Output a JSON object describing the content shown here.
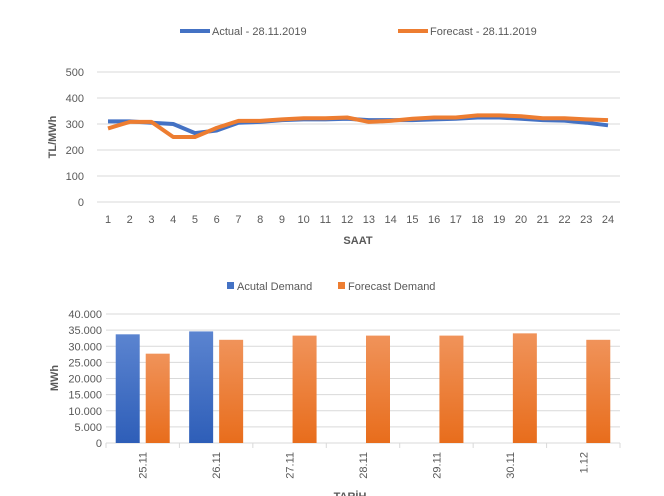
{
  "chart_data": [
    {
      "type": "line",
      "xlabel": "SAAT",
      "ylabel": "TL/MWh",
      "ylim": [
        0,
        500
      ],
      "yticks": [
        0,
        100,
        200,
        300,
        400,
        500
      ],
      "grid": true,
      "legend": "top",
      "x": [
        1,
        2,
        3,
        4,
        5,
        6,
        7,
        8,
        9,
        10,
        11,
        12,
        13,
        14,
        15,
        16,
        17,
        18,
        19,
        20,
        21,
        22,
        23,
        24
      ],
      "series": [
        {
          "name": "Actual - 28.11.2019",
          "color": "#4472C4",
          "values": [
            310,
            310,
            305,
            300,
            265,
            275,
            305,
            308,
            315,
            318,
            318,
            320,
            315,
            315,
            315,
            318,
            320,
            325,
            325,
            320,
            315,
            313,
            305,
            295
          ]
        },
        {
          "name": "Forecast - 28.11.2019",
          "color": "#ED7D31",
          "values": [
            283,
            308,
            308,
            250,
            250,
            285,
            312,
            312,
            318,
            322,
            322,
            325,
            308,
            312,
            320,
            325,
            325,
            333,
            333,
            330,
            322,
            322,
            318,
            315
          ]
        }
      ]
    },
    {
      "type": "bar",
      "xlabel": "TARİH",
      "ylabel": "MWh",
      "ylim": [
        0,
        40000
      ],
      "yticks": [
        "0",
        "5.000",
        "10.000",
        "15.000",
        "20.000",
        "25.000",
        "30.000",
        "35.000",
        "40.000"
      ],
      "grid": true,
      "legend": "top",
      "categories": [
        "25.11",
        "26.11",
        "27.11",
        "28.11",
        "29.11",
        "30.11",
        "1.12"
      ],
      "series": [
        {
          "name": "Acutal Demand",
          "color": "#4472C4",
          "values": [
            33700,
            34600,
            null,
            null,
            null,
            null,
            null
          ]
        },
        {
          "name": "Forecast Demand",
          "color": "#ED7D31",
          "values": [
            27700,
            32000,
            33300,
            33300,
            33300,
            34000,
            32000
          ]
        }
      ]
    }
  ]
}
